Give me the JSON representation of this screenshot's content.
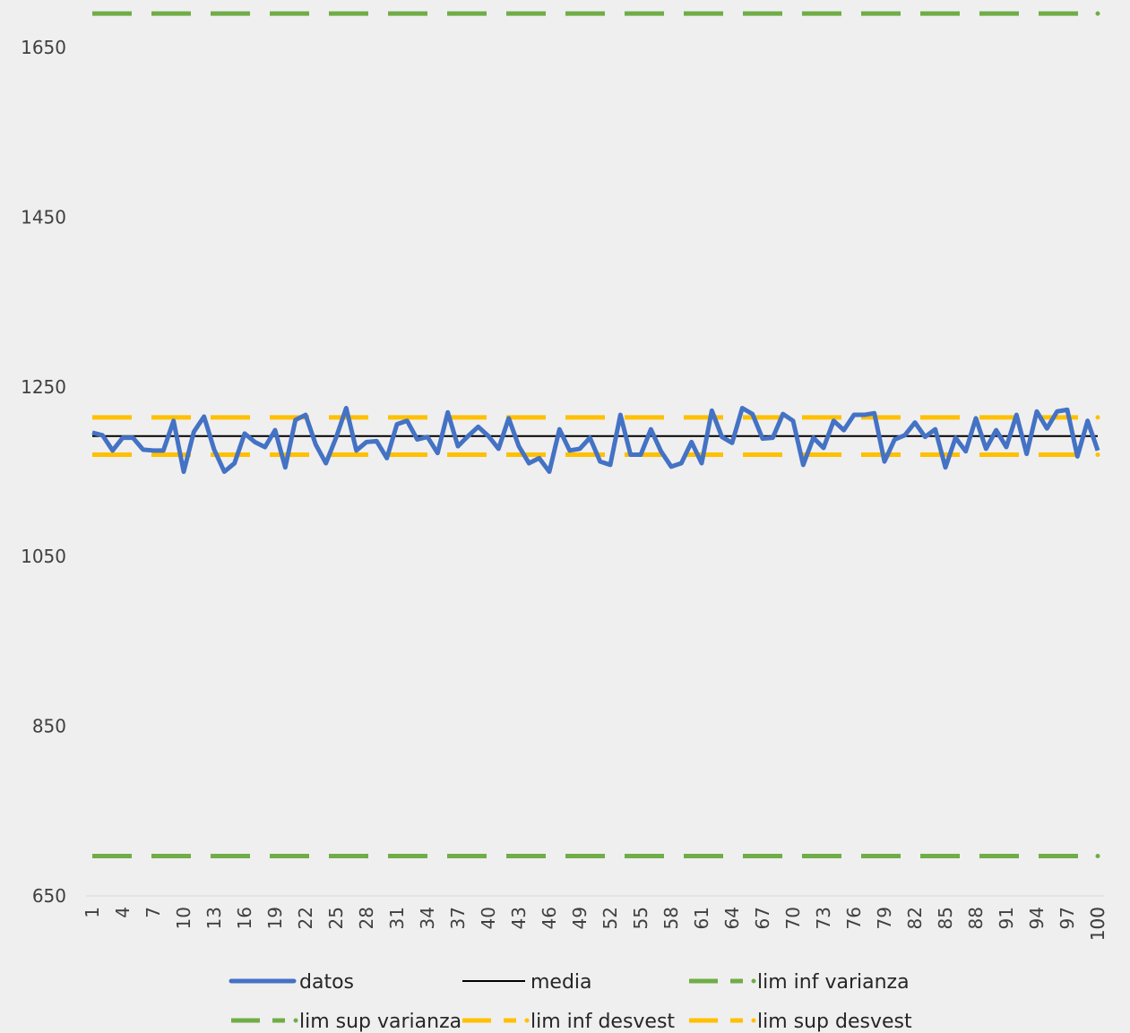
{
  "chart_data": {
    "type": "line",
    "title": "",
    "xlabel": "",
    "ylabel": "",
    "ylim": [
      650,
      1650
    ],
    "y_ticks": [
      650,
      850,
      1050,
      1250,
      1450,
      1650
    ],
    "x_tick_step": 3,
    "x": [
      1,
      2,
      3,
      4,
      5,
      6,
      7,
      8,
      9,
      10,
      11,
      12,
      13,
      14,
      15,
      16,
      17,
      18,
      19,
      20,
      21,
      22,
      23,
      24,
      25,
      26,
      27,
      28,
      29,
      30,
      31,
      32,
      33,
      34,
      35,
      36,
      37,
      38,
      39,
      40,
      41,
      42,
      43,
      44,
      45,
      46,
      47,
      48,
      49,
      50,
      51,
      52,
      53,
      54,
      55,
      56,
      57,
      58,
      59,
      60,
      61,
      62,
      63,
      64,
      65,
      66,
      67,
      68,
      69,
      70,
      71,
      72,
      73,
      74,
      75,
      76,
      77,
      78,
      79,
      80,
      81,
      82,
      83,
      84,
      85,
      86,
      87,
      88,
      89,
      90,
      91,
      92,
      93,
      94,
      95,
      96,
      97,
      98,
      99,
      100
    ],
    "grid": false,
    "legend_position": "bottom",
    "series": [
      {
        "name": "datos",
        "color": "#4472c4",
        "style": "solid",
        "values": [
          1196,
          1193,
          1175,
          1190,
          1190,
          1176,
          1175,
          1175,
          1210,
          1150,
          1197,
          1215,
          1176,
          1150,
          1160,
          1195,
          1185,
          1179,
          1199,
          1155,
          1211,
          1217,
          1182,
          1160,
          1190,
          1225,
          1175,
          1185,
          1186,
          1166,
          1206,
          1210,
          1188,
          1191,
          1172,
          1220,
          1180,
          1192,
          1203,
          1192,
          1177,
          1213,
          1180,
          1160,
          1166,
          1150,
          1200,
          1175,
          1177,
          1190,
          1162,
          1158,
          1217,
          1170,
          1170,
          1200,
          1174,
          1156,
          1160,
          1185,
          1160,
          1222,
          1191,
          1184,
          1225,
          1218,
          1189,
          1190,
          1218,
          1210,
          1158,
          1190,
          1178,
          1210,
          1199,
          1217,
          1217,
          1219,
          1162,
          1188,
          1193,
          1208,
          1191,
          1200,
          1155,
          1190,
          1174,
          1213,
          1177,
          1199,
          1179,
          1217,
          1171,
          1221,
          1201,
          1221,
          1223,
          1168,
          1210,
          1175
        ]
      },
      {
        "name": "media",
        "color": "#000000",
        "style": "solid",
        "constant": 1192
      },
      {
        "name": "lim inf varianza",
        "color": "#70ad47",
        "style": "dashed",
        "constant": 697
      },
      {
        "name": "lim sup varianza",
        "color": "#70ad47",
        "style": "dashed",
        "constant": 1690
      },
      {
        "name": "lim inf desvest",
        "color": "#ffc000",
        "style": "dashed",
        "constant": 1170
      },
      {
        "name": "lim sup desvest",
        "color": "#ffc000",
        "style": "dashed",
        "constant": 1214
      }
    ]
  }
}
